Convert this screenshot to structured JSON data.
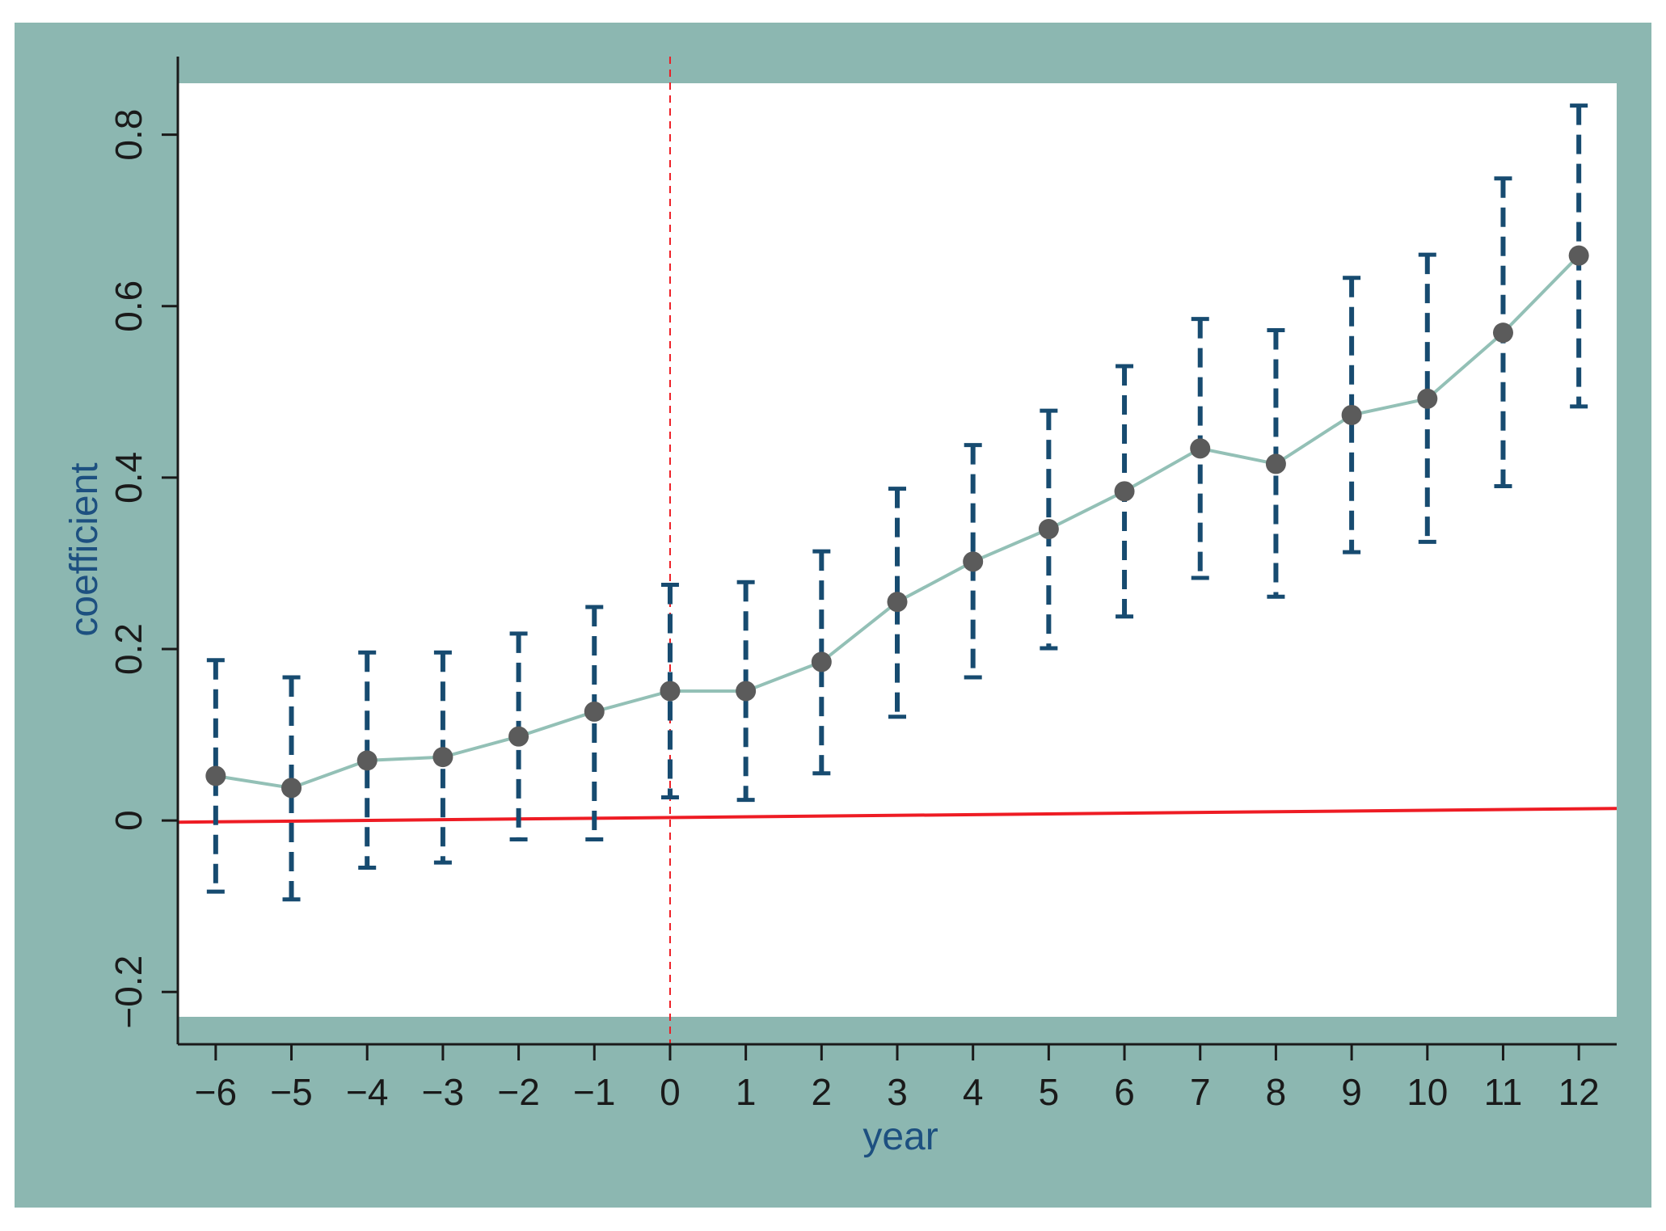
{
  "colors": {
    "frame": "#8cb7b1",
    "plot_bg": "#ffffff",
    "axis": "#1a1a1a",
    "axis_title": "#1d5080",
    "ci": "#174b70",
    "line": "#93c0b6",
    "marker": "#5b5b5b",
    "zero_line": "#ee1c24",
    "event_line": "#ee1c24"
  },
  "chart_data": {
    "type": "line",
    "title": "",
    "xlabel": "year",
    "ylabel": "coefficient",
    "x": [
      -6,
      -5,
      -4,
      -3,
      -2,
      -1,
      0,
      1,
      2,
      3,
      4,
      5,
      6,
      7,
      8,
      9,
      10,
      11,
      12
    ],
    "x_tick_labels": [
      "−6",
      "−5",
      "−4",
      "−3",
      "−2",
      "−1",
      "0",
      "1",
      "2",
      "3",
      "4",
      "5",
      "6",
      "7",
      "8",
      "9",
      "10",
      "11",
      "12"
    ],
    "y_ticks": [
      -0.2,
      0,
      0.2,
      0.4,
      0.6,
      0.8
    ],
    "y_tick_labels": [
      "−0.2",
      "0",
      "0.2",
      "0.4",
      "0.6",
      "0.8"
    ],
    "xlim": [
      -6.5,
      12.5
    ],
    "ylim": [
      -0.229,
      0.86
    ],
    "series": [
      {
        "values": [
          0.052,
          0.038,
          0.07,
          0.074,
          0.098,
          0.127,
          0.151,
          0.151,
          0.185,
          0.255,
          0.302,
          0.34,
          0.384,
          0.434,
          0.416,
          0.473,
          0.492,
          0.569,
          0.659
        ],
        "ci_lower": [
          -0.083,
          -0.092,
          -0.055,
          -0.049,
          -0.022,
          -0.022,
          0.027,
          0.024,
          0.055,
          0.121,
          0.167,
          0.201,
          0.238,
          0.283,
          0.261,
          0.313,
          0.325,
          0.39,
          0.483
        ],
        "ci_upper": [
          0.187,
          0.167,
          0.196,
          0.196,
          0.218,
          0.249,
          0.275,
          0.278,
          0.314,
          0.387,
          0.438,
          0.478,
          0.53,
          0.585,
          0.572,
          0.633,
          0.66,
          0.749,
          0.834
        ]
      }
    ],
    "reference_lines": [
      {
        "orientation": "vertical",
        "x": 0,
        "style": "dashed"
      },
      {
        "orientation": "horizontal",
        "from": [
          -6.5,
          -0.002
        ],
        "to": [
          12.5,
          0.014
        ],
        "style": "solid"
      }
    ],
    "grid": false,
    "legend": "none"
  }
}
